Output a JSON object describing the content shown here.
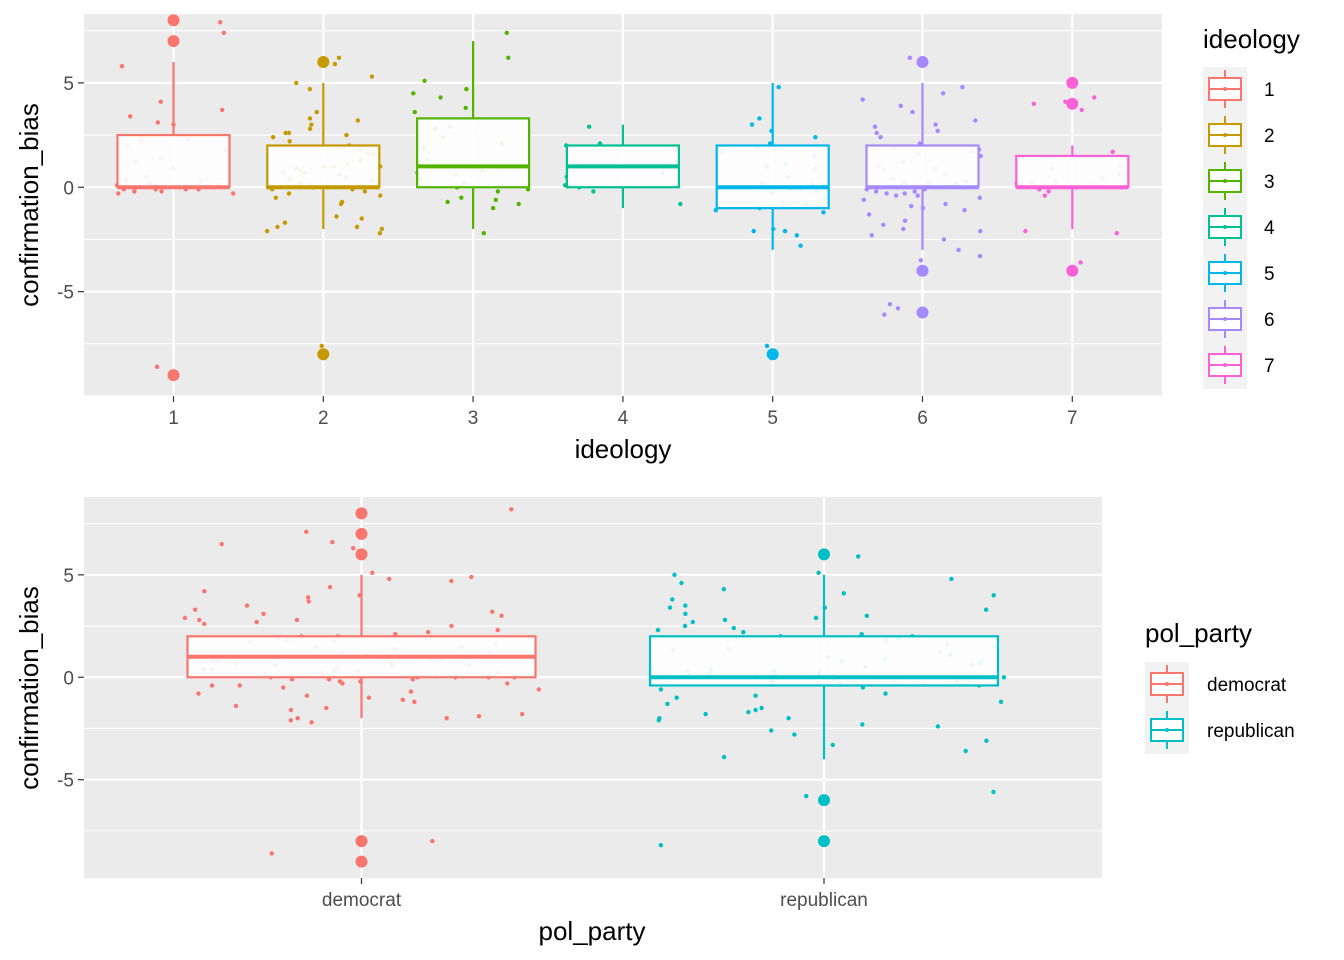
{
  "chart_data": [
    {
      "type": "box",
      "xlabel": "ideology",
      "ylabel": "confirmation_bias",
      "ylim": [
        -10,
        8.3
      ],
      "y_ticks": [
        -5,
        0,
        5
      ],
      "categories": [
        "1",
        "2",
        "3",
        "4",
        "5",
        "6",
        "7"
      ],
      "grid": true,
      "legend": {
        "title": "ideology",
        "position": "right",
        "entries": [
          "1",
          "2",
          "3",
          "4",
          "5",
          "6",
          "7"
        ]
      },
      "colors": [
        "#F8766D",
        "#C49A00",
        "#53B400",
        "#00C094",
        "#00B6EB",
        "#A58AFF",
        "#FB61D7"
      ],
      "boxes": [
        {
          "category": "1",
          "q1": 0,
          "median": 0,
          "q3": 2.5,
          "whisker_low": 0,
          "whisker_high": 6,
          "outliers": [
            8,
            7,
            -9
          ]
        },
        {
          "category": "2",
          "q1": 0,
          "median": 0,
          "q3": 2,
          "whisker_low": -2,
          "whisker_high": 5,
          "outliers": [
            6,
            -8
          ]
        },
        {
          "category": "3",
          "q1": 0,
          "median": 1,
          "q3": 3.3,
          "whisker_low": -2,
          "whisker_high": 7,
          "outliers": []
        },
        {
          "category": "4",
          "q1": 0,
          "median": 1,
          "q3": 2,
          "whisker_low": -1,
          "whisker_high": 3,
          "outliers": []
        },
        {
          "category": "5",
          "q1": -1,
          "median": 0,
          "q3": 2,
          "whisker_low": -3,
          "whisker_high": 5,
          "outliers": [
            -8
          ]
        },
        {
          "category": "6",
          "q1": 0,
          "median": 0,
          "q3": 2,
          "whisker_low": -3,
          "whisker_high": 5,
          "outliers": [
            6,
            -4,
            -6
          ]
        },
        {
          "category": "7",
          "q1": 0,
          "median": 0,
          "q3": 1.5,
          "whisker_low": -2,
          "whisker_high": 2,
          "outliers": [
            5,
            4,
            -4
          ]
        }
      ],
      "jitter": [
        {
          "category": "1",
          "values": [
            7.9,
            7.4,
            5.8,
            4.1,
            3.7,
            3.4,
            3.1,
            3.0,
            2.3,
            2.2,
            2.0,
            1.8,
            1.4,
            1.2,
            0.9,
            0.5,
            0.3,
            0.3,
            0.2,
            0.2,
            0.1,
            0.1,
            0.0,
            0.0,
            0.0,
            0.0,
            0.0,
            -0.1,
            -0.1,
            -0.1,
            -0.1,
            -0.2,
            -0.2,
            -0.3,
            -0.3,
            -8.6
          ]
        },
        {
          "category": "2",
          "values": [
            6.2,
            5.9,
            5.3,
            5.0,
            4.7,
            3.6,
            3.3,
            3.2,
            3.0,
            2.8,
            2.6,
            2.6,
            2.5,
            2.4,
            2.2,
            2.0,
            1.8,
            1.6,
            1.6,
            1.3,
            1.1,
            1.0,
            1.0,
            1.0,
            0.9,
            0.8,
            0.7,
            0.7,
            0.6,
            0.5,
            0.4,
            0.3,
            0.2,
            0.2,
            0.1,
            0.1,
            0.0,
            0.0,
            0.0,
            0.0,
            0.0,
            0.0,
            -0.1,
            -0.1,
            -0.2,
            -0.3,
            -0.4,
            -0.5,
            -0.7,
            -0.8,
            -1.4,
            -1.5,
            -1.7,
            -1.9,
            -1.9,
            -2.0,
            -2.1,
            -2.2,
            -7.6
          ]
        },
        {
          "category": "3",
          "values": [
            7.4,
            6.2,
            5.1,
            4.7,
            4.5,
            4.3,
            3.8,
            3.6,
            2.9,
            2.8,
            2.4,
            2.1,
            1.9,
            1.3,
            1.0,
            0.8,
            0.7,
            0.6,
            0.4,
            0.2,
            0.0,
            -0.1,
            -0.2,
            -0.5,
            -0.6,
            -0.7,
            -0.8,
            -1.0,
            -2.2
          ]
        },
        {
          "category": "4",
          "values": [
            2.9,
            2.1,
            2.0,
            0.7,
            0.5,
            0.1,
            0.0,
            -0.2,
            -0.8
          ]
        },
        {
          "category": "5",
          "values": [
            4.8,
            3.3,
            3.0,
            2.7,
            2.4,
            2.1,
            1.9,
            1.7,
            1.5,
            1.1,
            1.0,
            0.9,
            0.5,
            0.2,
            0.1,
            0.1,
            0.0,
            0.0,
            -0.1,
            -0.1,
            -0.2,
            -0.3,
            -0.5,
            -0.7,
            -0.8,
            -1.0,
            -1.1,
            -1.2,
            -2.0,
            -2.1,
            -2.1,
            -2.3,
            -2.8,
            -7.6
          ]
        },
        {
          "category": "6",
          "values": [
            6.2,
            4.8,
            4.5,
            4.2,
            3.9,
            3.6,
            3.2,
            3.0,
            2.9,
            2.7,
            2.6,
            2.4,
            2.1,
            1.9,
            1.8,
            1.7,
            1.6,
            1.5,
            1.2,
            1.0,
            0.9,
            0.8,
            0.6,
            0.4,
            0.3,
            0.2,
            0.2,
            0.1,
            0.0,
            0.0,
            0.0,
            0.0,
            -0.1,
            -0.1,
            -0.2,
            -0.2,
            -0.3,
            -0.3,
            -0.4,
            -0.4,
            -0.5,
            -0.6,
            -0.8,
            -0.9,
            -1.0,
            -1.1,
            -1.3,
            -1.6,
            -1.8,
            -2.0,
            -2.1,
            -2.3,
            -2.5,
            -3.0,
            -3.3,
            -3.5,
            -5.6,
            -5.8,
            -6.1
          ]
        },
        {
          "category": "7",
          "values": [
            4.3,
            4.1,
            4.0,
            3.7,
            1.7,
            1.0,
            0.9,
            0.6,
            0.4,
            0.3,
            0.2,
            0.2,
            0.1,
            0.1,
            0.0,
            0.0,
            -0.1,
            -0.2,
            -0.4,
            -2.1,
            -2.2,
            -3.6
          ]
        }
      ]
    },
    {
      "type": "box",
      "xlabel": "pol_party",
      "ylabel": "confirmation_bias",
      "ylim": [
        -9.8,
        8.8
      ],
      "y_ticks": [
        -5,
        0,
        5
      ],
      "categories": [
        "democrat",
        "republican"
      ],
      "grid": true,
      "legend": {
        "title": "pol_party",
        "position": "right",
        "entries": [
          "democrat",
          "republican"
        ]
      },
      "colors": [
        "#F8766D",
        "#00BFC4"
      ],
      "boxes": [
        {
          "category": "democrat",
          "q1": 0,
          "median": 1,
          "q3": 2,
          "whisker_low": -2,
          "whisker_high": 5,
          "outliers": [
            8,
            7,
            6,
            -8,
            -9
          ]
        },
        {
          "category": "republican",
          "q1": -0.4,
          "median": 0,
          "q3": 2,
          "whisker_low": -4,
          "whisker_high": 5,
          "outliers": [
            6,
            -6,
            -8
          ]
        }
      ],
      "jitter": [
        {
          "category": "democrat",
          "values": [
            8.2,
            7.1,
            6.6,
            6.5,
            6.3,
            5.1,
            4.9,
            4.8,
            4.7,
            4.4,
            4.2,
            4.0,
            3.9,
            3.7,
            3.5,
            3.3,
            3.2,
            3.1,
            3.0,
            2.9,
            2.8,
            2.8,
            2.7,
            2.6,
            2.5,
            2.3,
            2.2,
            2.1,
            2.0,
            2.0,
            1.9,
            1.8,
            1.8,
            1.7,
            1.6,
            1.5,
            1.5,
            1.4,
            1.3,
            1.2,
            1.2,
            1.1,
            1.0,
            1.0,
            1.0,
            0.9,
            0.9,
            0.8,
            0.8,
            0.7,
            0.7,
            0.6,
            0.6,
            0.5,
            0.5,
            0.4,
            0.4,
            0.3,
            0.3,
            0.2,
            0.2,
            0.2,
            0.1,
            0.1,
            0.1,
            0.0,
            0.0,
            0.0,
            0.0,
            0.0,
            -0.1,
            -0.1,
            -0.1,
            -0.2,
            -0.2,
            -0.3,
            -0.3,
            -0.4,
            -0.4,
            -0.5,
            -0.6,
            -0.7,
            -0.8,
            -0.9,
            -1.0,
            -1.1,
            -1.2,
            -1.4,
            -1.5,
            -1.6,
            -1.8,
            -1.9,
            -2.0,
            -2.0,
            -2.1,
            -2.2,
            -8.0,
            -8.6
          ]
        },
        {
          "category": "republican",
          "values": [
            5.9,
            5.1,
            5.0,
            4.8,
            4.6,
            4.3,
            4.1,
            4.0,
            3.8,
            3.5,
            3.4,
            3.4,
            3.3,
            3.1,
            3.0,
            2.9,
            2.8,
            2.7,
            2.5,
            2.4,
            2.3,
            2.2,
            2.1,
            2.0,
            2.0,
            1.9,
            1.8,
            1.6,
            1.5,
            1.4,
            1.3,
            1.2,
            1.1,
            1.0,
            0.9,
            0.8,
            0.8,
            0.7,
            0.6,
            0.5,
            0.5,
            0.4,
            0.3,
            0.3,
            0.2,
            0.2,
            0.1,
            0.1,
            0.1,
            0.0,
            0.0,
            0.0,
            0.0,
            0.0,
            -0.1,
            -0.1,
            -0.1,
            -0.2,
            -0.2,
            -0.3,
            -0.3,
            -0.4,
            -0.5,
            -0.6,
            -0.8,
            -0.9,
            -1.0,
            -1.2,
            -1.3,
            -1.5,
            -1.6,
            -1.7,
            -1.8,
            -2.0,
            -2.0,
            -2.1,
            -2.3,
            -2.4,
            -2.6,
            -2.8,
            -3.1,
            -3.3,
            -3.6,
            -3.9,
            -5.6,
            -5.8,
            -8.2
          ]
        }
      ]
    }
  ]
}
